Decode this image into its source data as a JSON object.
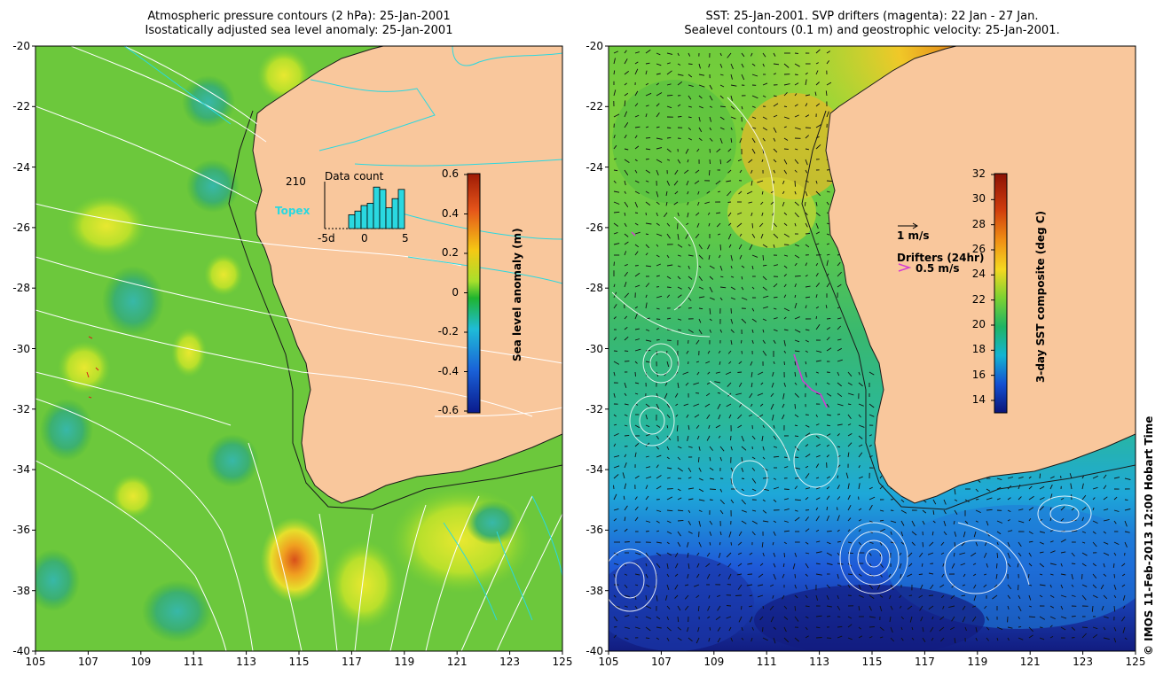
{
  "left_panel": {
    "title_line1": "Atmospheric pressure contours (2 hPa): 25-Jan-2001",
    "title_line2": "Isostatically adjusted sea level anomaly: 25-Jan-2001",
    "colorbar": {
      "title": "Sea level anomaly (m)",
      "ticks": [
        "0.6",
        "0.4",
        "0.2",
        "0",
        "-0.2",
        "-0.4",
        "-0.6"
      ],
      "colors": [
        "#a01a05",
        "#e85a10",
        "#f5c814",
        "#a8e02c",
        "#1fb42f",
        "#1fbcd8",
        "#1a62d8",
        "#0a1a8c"
      ]
    },
    "inset": {
      "title": "Data count",
      "max_label": "210",
      "satellite_label": "Topex",
      "x_left": "-5d",
      "x_mid": "0",
      "x_right": "5",
      "bar_values": [
        0.3,
        0.38,
        0.5,
        0.55,
        0.9,
        0.85,
        0.45,
        0.65,
        0.85
      ]
    }
  },
  "right_panel": {
    "title_line1": "SST: 25-Jan-2001. SVP drifters (magenta): 22 Jan - 27 Jan.",
    "title_line2": "Sealevel contours (0.1 m) and geostrophic velocity: 25-Jan-2001.",
    "colorbar": {
      "title": "3-day SST composite (deg C)",
      "ticks": [
        "32",
        "30",
        "28",
        "26",
        "24",
        "22",
        "20",
        "18",
        "16",
        "14"
      ],
      "colors": [
        "#8c1205",
        "#c8320a",
        "#f07814",
        "#f5c814",
        "#e6e628",
        "#64d232",
        "#1eb464",
        "#14b4c8",
        "#145ad2",
        "#0a1478"
      ]
    },
    "velocity_ref": "1 m/s",
    "drifters_title": "Drifters (24hr)",
    "drifters_ref": "0.5 m/s"
  },
  "axes": {
    "y_ticks": [
      "-20",
      "-22",
      "-24",
      "-26",
      "-28",
      "-30",
      "-32",
      "-34",
      "-36",
      "-38",
      "-40"
    ],
    "x_ticks": [
      "105",
      "107",
      "109",
      "111",
      "113",
      "115",
      "117",
      "119",
      "121",
      "123",
      "125"
    ]
  },
  "colors": {
    "land": "#f9c79c",
    "coast": "#1a1a1a",
    "isobar": "#ffffff",
    "cyan_contour": "#2ad8e0",
    "drifter": "#d43ad4"
  },
  "credit": "© IMOS 11-Feb-2013 12:00 Hobart Time"
}
